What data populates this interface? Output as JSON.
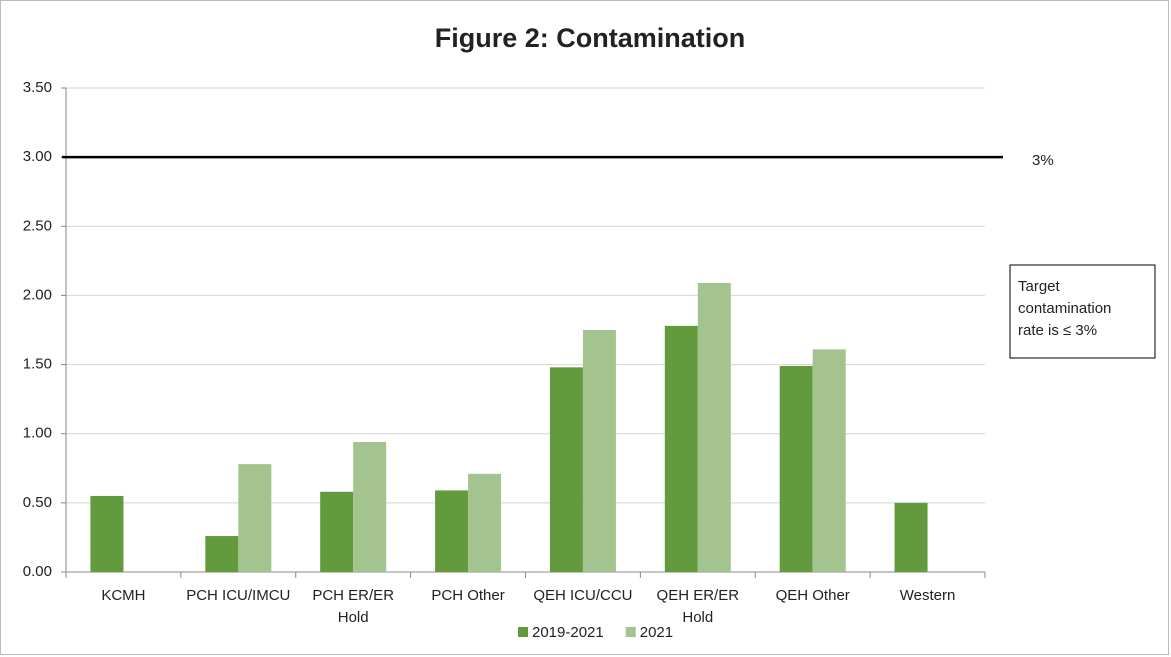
{
  "chart_data": {
    "type": "bar",
    "title": "Figure 2: Contamination",
    "categories": [
      "KCMH",
      "PCH ICU/IMCU",
      "PCH ER/ER Hold",
      "PCH Other",
      "QEH ICU/CCU",
      "QEH ER/ER Hold",
      "QEH Other",
      "Western"
    ],
    "series": [
      {
        "name": "2019-2021",
        "color": "#649a3e",
        "values": [
          0.55,
          0.26,
          0.58,
          0.59,
          1.48,
          1.78,
          1.49,
          0.5
        ]
      },
      {
        "name": "2021",
        "color": "#a3c48e",
        "values": [
          null,
          0.78,
          0.94,
          0.71,
          1.75,
          2.09,
          1.61,
          null
        ]
      }
    ],
    "ylim": [
      0,
      3.5
    ],
    "yticks": [
      {
        "value": 0,
        "label": "0.00"
      },
      {
        "value": 0.5,
        "label": "0.50"
      },
      {
        "value": 1,
        "label": "1.00"
      },
      {
        "value": 1.5,
        "label": "1.50"
      },
      {
        "value": 2,
        "label": "2.00"
      },
      {
        "value": 2.5,
        "label": "2.50"
      },
      {
        "value": 3,
        "label": "3.00"
      },
      {
        "value": 3.5,
        "label": "3.50"
      }
    ],
    "grid": true,
    "target": {
      "value": 3,
      "label": "3%"
    },
    "annotation": [
      "Target",
      "contamination",
      "rate is ≤ 3%"
    ],
    "legend": "bottom"
  }
}
